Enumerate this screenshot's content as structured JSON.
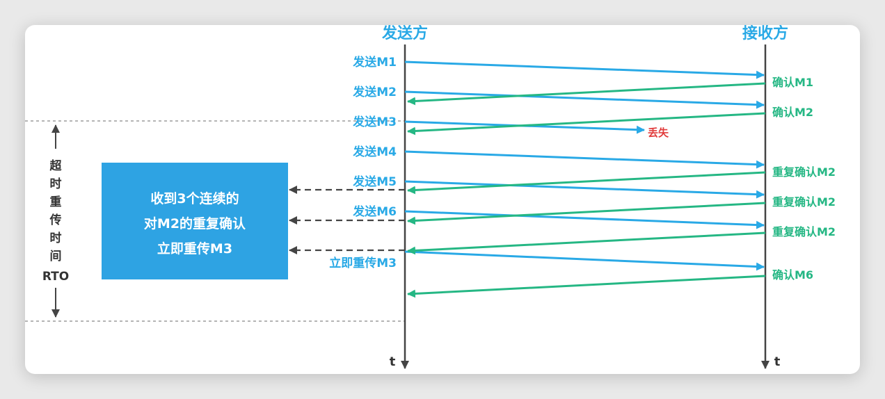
{
  "header": {
    "sender": "发送方",
    "receiver": "接收方",
    "time_label": "t"
  },
  "messages": [
    {
      "label": "发送M1",
      "status": "delivered",
      "ack": "确认M1"
    },
    {
      "label": "发送M2",
      "status": "delivered",
      "ack": "确认M2"
    },
    {
      "label": "发送M3",
      "status": "lost",
      "lost_label": "丢失"
    },
    {
      "label": "发送M4",
      "status": "delivered",
      "ack": "重复确认M2"
    },
    {
      "label": "发送M5",
      "status": "delivered",
      "ack": "重复确认M2"
    },
    {
      "label": "发送M6",
      "status": "delivered",
      "ack": "重复确认M2"
    },
    {
      "label": "立即重传M3",
      "status": "delivered",
      "ack": "确认M6"
    }
  ],
  "rto": {
    "chars": [
      "超",
      "时",
      "重",
      "传",
      "时",
      "间"
    ],
    "abbr": "RTO"
  },
  "info_box": {
    "lines": [
      "收到3个连续的",
      "对M2的重复确认",
      "立即重传M3"
    ]
  },
  "colors": {
    "send_arrow": "#29a9e6",
    "ack_arrow": "#25b784",
    "lost": "#e13c3c",
    "info_box": "#2ea3e3"
  }
}
